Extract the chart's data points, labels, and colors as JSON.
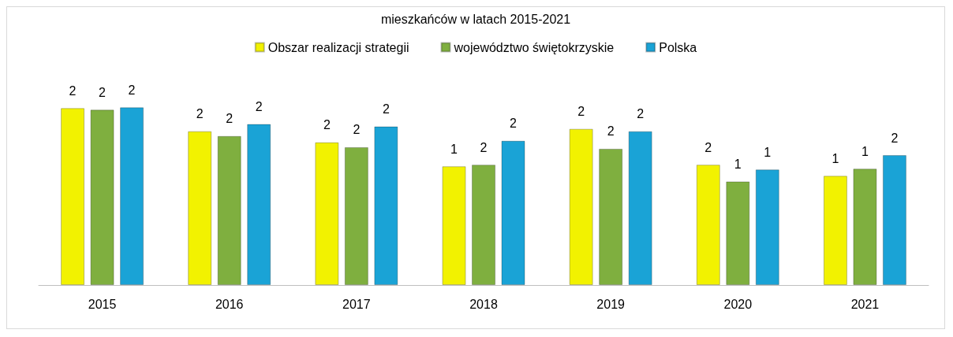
{
  "chart_data": {
    "type": "bar",
    "title": "mieszkańców w latach 2015-2021",
    "categories": [
      "2015",
      "2016",
      "2017",
      "2018",
      "2019",
      "2020",
      "2021"
    ],
    "legend": "top",
    "grid": false,
    "series": [
      {
        "name": "Obszar realizacji strategii",
        "color": "#f2f200",
        "values": [
          2.22,
          1.93,
          1.79,
          1.49,
          1.96,
          1.51,
          1.37
        ],
        "value_labels": [
          "2",
          "2",
          "2",
          "1",
          "2",
          "2",
          "1"
        ]
      },
      {
        "name": "województwo świętokrzyskie",
        "color": "#7faf3f",
        "values": [
          2.2,
          1.87,
          1.73,
          1.51,
          1.71,
          1.3,
          1.46
        ],
        "value_labels": [
          "2",
          "2",
          "2",
          "2",
          "2",
          "1",
          "1"
        ]
      },
      {
        "name": "Polska",
        "color": "#1aa3d6",
        "values": [
          2.23,
          2.02,
          1.99,
          1.81,
          1.93,
          1.45,
          1.63
        ],
        "value_labels": [
          "2",
          "2",
          "2",
          "2",
          "2",
          "1",
          "2"
        ]
      }
    ]
  }
}
